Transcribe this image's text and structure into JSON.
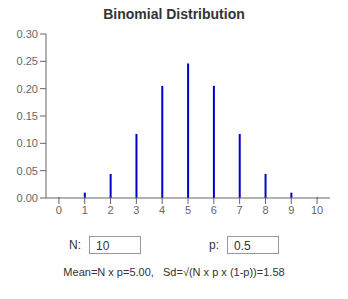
{
  "chart_data": {
    "type": "stem",
    "title": "Binomial Distribution",
    "x": [
      0,
      1,
      2,
      3,
      4,
      5,
      6,
      7,
      8,
      9,
      10
    ],
    "values": [
      0.0009765625,
      0.009765625,
      0.0439453125,
      0.1171875,
      0.205078125,
      0.24609375,
      0.205078125,
      0.1171875,
      0.0439453125,
      0.009765625,
      0.0009765625
    ],
    "color": "#0000cc",
    "xlim": [
      -0.5,
      10.5
    ],
    "xticks": [
      0,
      1,
      2,
      3,
      4,
      5,
      6,
      7,
      8,
      9,
      10
    ],
    "ylim": [
      0,
      0.3
    ],
    "yticks": [
      {
        "value": 0.0,
        "label": "0.00"
      },
      0.05,
      {
        "value": 0.1,
        "label": "0.10"
      },
      0.15,
      {
        "value": 0.2,
        "label": "0.20"
      },
      0.25,
      {
        "value": 0.3,
        "label": "0.30"
      }
    ],
    "grid": false,
    "annotations": [
      "N:",
      "10",
      "p:",
      "0.5",
      "Mean=N x p=5.00,   Sd=√(N x p x (1-p))=1.58"
    ]
  }
}
